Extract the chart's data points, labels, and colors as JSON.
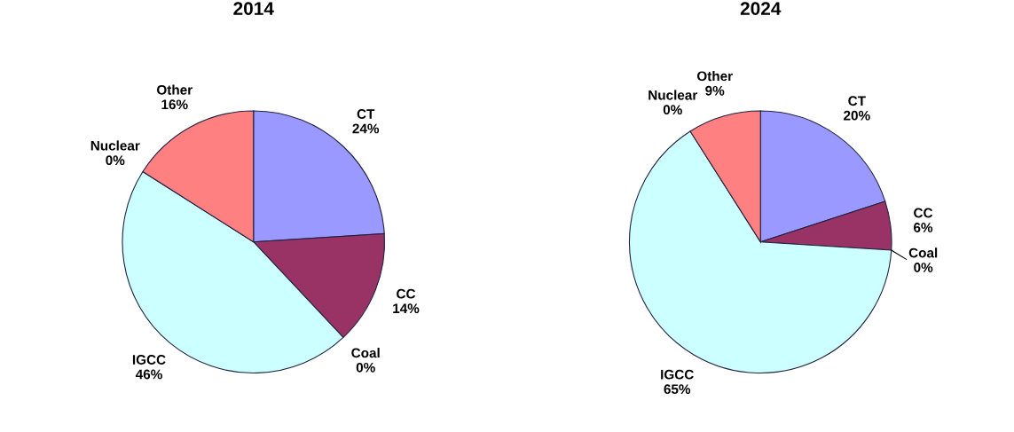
{
  "chart_data": [
    {
      "type": "pie",
      "title": "2014",
      "categories": [
        "CT",
        "CC",
        "Coal",
        "IGCC",
        "Nuclear",
        "Other"
      ],
      "values": [
        24,
        14,
        0,
        46,
        0,
        16
      ],
      "colors": [
        "#9999ff",
        "#993366",
        "#ffffcc",
        "#ccffff",
        "#660066",
        "#ff8080"
      ],
      "value_labels": [
        "24%",
        "14%",
        "0%",
        "46%",
        "0%",
        "16%"
      ]
    },
    {
      "type": "pie",
      "title": "2024",
      "categories": [
        "CT",
        "CC",
        "Coal",
        "IGCC",
        "Nuclear",
        "Other"
      ],
      "values": [
        20,
        6,
        0,
        65,
        0,
        9
      ],
      "colors": [
        "#9999ff",
        "#993366",
        "#ffffcc",
        "#ccffff",
        "#660066",
        "#ff8080"
      ],
      "value_labels": [
        "20%",
        "6%",
        "0%",
        "65%",
        "0%",
        "9%"
      ]
    }
  ]
}
